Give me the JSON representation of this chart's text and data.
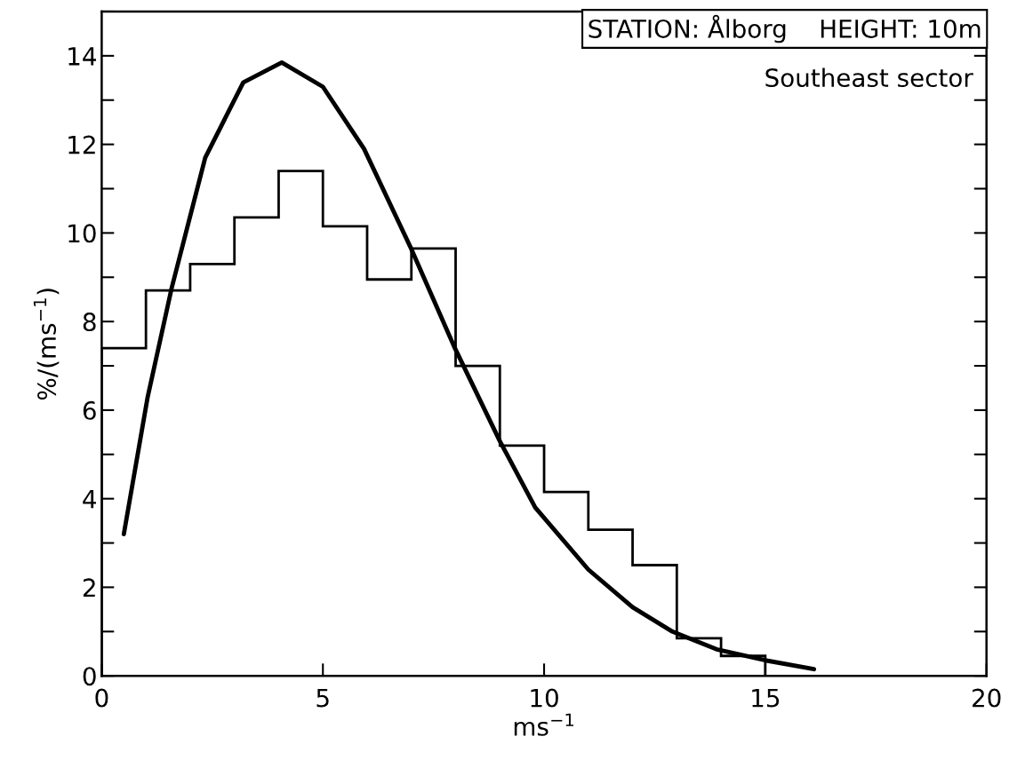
{
  "chart_data": {
    "type": "histogram",
    "xlabel": "ms$^{−1}$",
    "ylabel": "%/(ms$^{−1}$)",
    "annotations": [
      "STATION: Ålborg    HEIGHT: 10m",
      "Southeast sector"
    ],
    "xlim": [
      0,
      20
    ],
    "ylim": [
      0,
      15
    ],
    "xticks": [
      0,
      5,
      10,
      15,
      20
    ],
    "yticks": [
      0,
      {
        "value": 1,
        "label": null
      },
      2,
      {
        "value": 3,
        "label": null
      },
      4,
      {
        "value": 5,
        "label": null
      },
      6,
      {
        "value": 7,
        "label": null
      },
      8,
      {
        "value": 9,
        "label": null
      },
      10,
      {
        "value": 11,
        "label": null
      },
      12,
      {
        "value": 13,
        "label": null
      },
      14,
      {
        "value": 15,
        "label": null
      }
    ],
    "grid": false,
    "legend": false,
    "series": [
      {
        "type": "histogram",
        "color": "#000000",
        "bins": [
          0,
          1,
          2,
          3,
          4,
          5,
          6,
          7,
          8,
          9,
          10,
          11,
          12,
          13,
          14,
          15
        ],
        "values": [
          7.4,
          8.7,
          9.3,
          10.35,
          11.4,
          10.15,
          8.95,
          9.65,
          7.0,
          5.2,
          4.15,
          3.3,
          2.5,
          0.85,
          0.45
        ]
      },
      {
        "type": "line",
        "color": "#000000",
        "x": [
          0.5,
          1.04,
          1.58,
          2.34,
          3.2,
          4.07,
          5.0,
          5.93,
          6.97,
          7.96,
          9.0,
          9.8,
          11.0,
          12.0,
          12.9,
          13.9,
          15.0,
          16.1
        ],
        "values": [
          3.2,
          6.3,
          8.75,
          11.7,
          13.4,
          13.85,
          13.3,
          11.9,
          9.7,
          7.45,
          5.3,
          3.8,
          2.4,
          1.55,
          1.0,
          0.6,
          0.35,
          0.15
        ]
      }
    ]
  }
}
